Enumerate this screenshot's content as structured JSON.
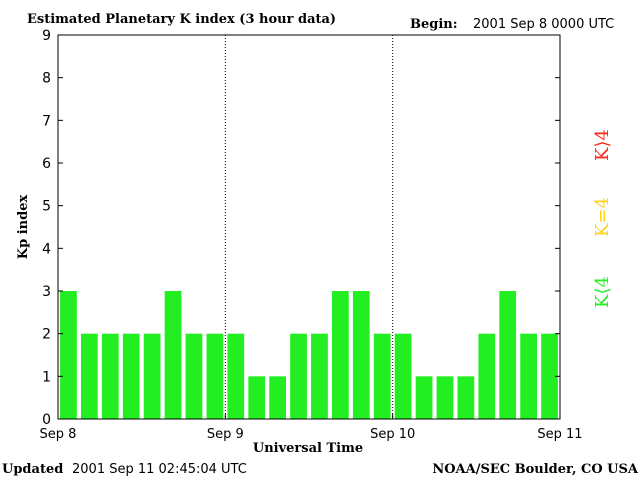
{
  "header": {
    "title": "Estimated Planetary K index (3 hour data)",
    "begin_label": "Begin:",
    "begin_value": "2001 Sep 8 0000 UTC"
  },
  "footer": {
    "updated_label": "Updated",
    "updated_value": "2001 Sep 11 02:45:04 UTC",
    "source": "NOAA/SEC Boulder, CO USA"
  },
  "legend": {
    "items": [
      {
        "label": "K⟩4",
        "color": "#ff2a1a"
      },
      {
        "label": "K=4",
        "color": "#ffd21c"
      },
      {
        "label": "K⟨4",
        "color": "#22ee22"
      }
    ]
  },
  "chart_data": {
    "type": "bar",
    "title": "Estimated Planetary K index (3 hour data)",
    "xlabel": "Universal Time",
    "ylabel": "Kp index",
    "ylim": [
      0,
      9
    ],
    "yticks": [
      "0",
      "1",
      "2",
      "3",
      "4",
      "5",
      "6",
      "7",
      "8",
      "9"
    ],
    "xticks": [
      "Sep 8",
      "Sep 9",
      "Sep 10",
      "Sep 11"
    ],
    "day_dividers": [
      "Sep 9",
      "Sep 10"
    ],
    "values": [
      3,
      2,
      2,
      2,
      2,
      3,
      2,
      2,
      2,
      1,
      1,
      2,
      2,
      3,
      3,
      2,
      2,
      1,
      1,
      1,
      2,
      3,
      2,
      2
    ],
    "bar_color": "#22ee22",
    "grid": false
  }
}
